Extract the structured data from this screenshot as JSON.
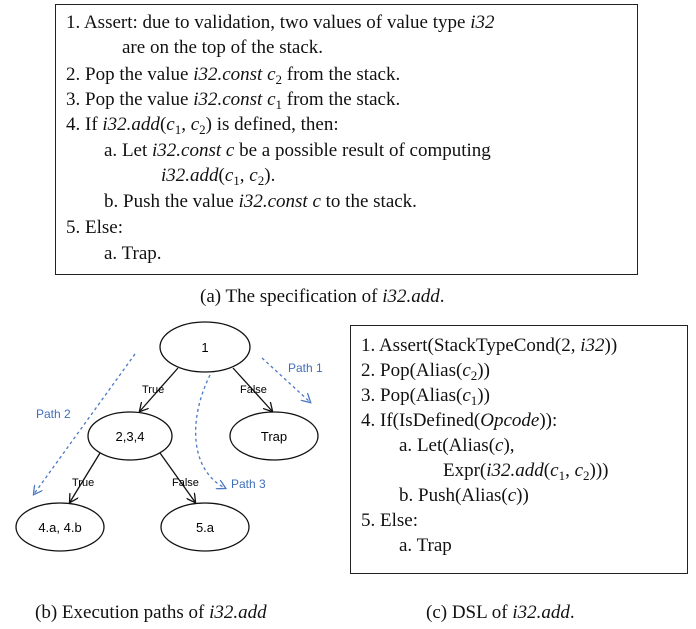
{
  "spec": {
    "lines": [
      {
        "num": "1.",
        "pre": "Assert: due to validation, two values of value type ",
        "math": "i32",
        "post": ""
      },
      {
        "num": "",
        "pre": "are on the top of the stack.",
        "math": "",
        "post": ""
      },
      {
        "num": "2.",
        "pre": "Pop the value ",
        "math": "i32.const",
        "sub_var": "c",
        "sub": "2",
        "post": " from the stack."
      },
      {
        "num": "3.",
        "pre": "Pop the value ",
        "math": "i32.const",
        "sub_var": "c",
        "sub": "1",
        "post": " from the stack."
      },
      {
        "num": "4.",
        "pre": "If ",
        "math": "i32.add",
        "post": " is defined, then:"
      },
      {
        "num": "a.",
        "pre": "Let ",
        "math": "i32.const c",
        "post": " be a possible result of computing"
      },
      {
        "num": "",
        "pre": "",
        "math": "i32.add",
        "post": "."
      },
      {
        "num": "b.",
        "pre": "Push the value ",
        "math": "i32.const c",
        "post": " to the stack."
      },
      {
        "num": "5.",
        "pre": "Else:",
        "math": "",
        "post": ""
      },
      {
        "num": "a.",
        "pre": "Trap.",
        "math": "",
        "post": ""
      }
    ],
    "caption_prefix": "(a) The specification of ",
    "caption_it": "i32.add",
    "caption_suffix": "."
  },
  "diagram": {
    "nodes": {
      "n1": "1",
      "n234": "2,3,4",
      "trap": "Trap",
      "n4ab": "4.a, 4.b",
      "n5a": "5.a"
    },
    "edges": {
      "true1": "True",
      "false1": "False",
      "true2": "True",
      "false2": "False"
    },
    "paths": {
      "p1": "Path 1",
      "p2": "Path 2",
      "p3": "Path 3"
    },
    "caption_prefix": "(b) Execution paths of ",
    "caption_it": "i32.add"
  },
  "dsl": {
    "lines": [
      {
        "num": "1.",
        "text": "Assert(StackTypeCond(2, ",
        "it": "i32",
        "tail": "))"
      },
      {
        "num": "2.",
        "text": "Pop(Alias(",
        "it": "c",
        "sub": "2",
        "tail": "))"
      },
      {
        "num": "3.",
        "text": "Pop(Alias(",
        "it": "c",
        "sub": "1",
        "tail": "))"
      },
      {
        "num": "4.",
        "text": "If(IsDefined(",
        "it": "Opcode",
        "tail": ")):"
      },
      {
        "num": "a.",
        "text": "Let(Alias(",
        "it": "c",
        "tail": "),"
      },
      {
        "num": "",
        "text": "Expr(",
        "it": "i32.add",
        "tail": "))"
      },
      {
        "num": "b.",
        "text": "Push(Alias(",
        "it": "c",
        "tail": "))"
      },
      {
        "num": "5.",
        "text": "Else:",
        "it": "",
        "tail": ""
      },
      {
        "num": "a.",
        "text": "Trap",
        "it": "",
        "tail": ""
      }
    ],
    "caption_prefix": "(c) DSL of ",
    "caption_it": "i32.add",
    "caption_suffix": "."
  },
  "colors": {
    "path_arrow": "#4a78c2",
    "path_text": "#3f6fba",
    "stroke": "#111111"
  }
}
